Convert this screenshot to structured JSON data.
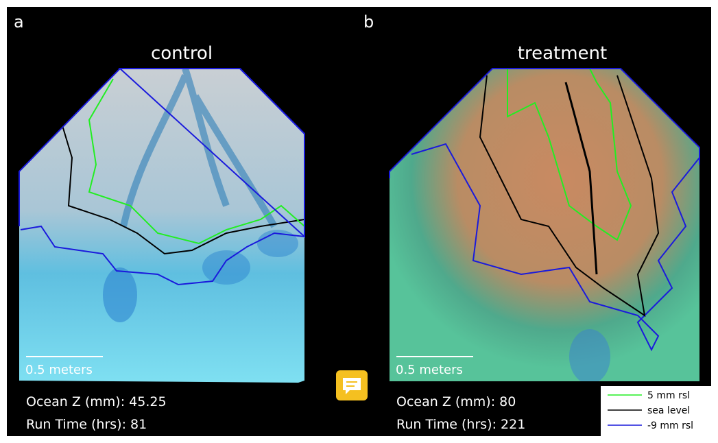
{
  "panels": [
    {
      "label": "a",
      "title": "control",
      "scale_label": "0.5 meters",
      "ocean_z": "Ocean Z (mm): 45.25",
      "run_time": "Run Time (hrs): 81"
    },
    {
      "label": "b",
      "title": "treatment",
      "scale_label": "0.5 meters",
      "ocean_z": "Ocean Z (mm): 80",
      "run_time": "Run Time (hrs): 221"
    }
  ],
  "legend": [
    {
      "label": "5 mm rsl",
      "color": "#22ee22"
    },
    {
      "label": "sea level",
      "color": "#000000"
    },
    {
      "label": "-9 mm rsl",
      "color": "#1a1adc"
    }
  ]
}
